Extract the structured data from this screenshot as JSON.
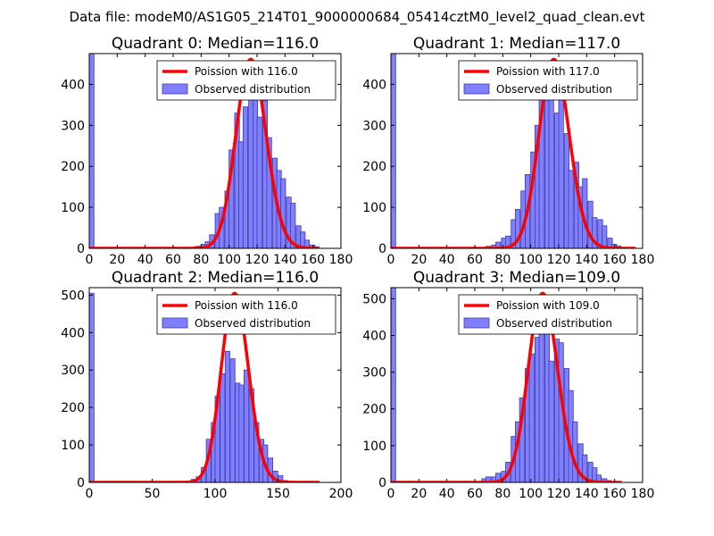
{
  "figure": {
    "suptitle": "Data file: modeM0/AS1G05_214T01_9000000684_05414cztM0_level2_quad_clean.evt"
  },
  "colors": {
    "bar_fill": "#8080ff",
    "bar_edge": "#3a3aa8",
    "curve": "#ff0000",
    "axes": "#000000"
  },
  "chart_data": [
    {
      "type": "bar",
      "title": "Quadrant 0: Median=116.0",
      "xlim": [
        0,
        180
      ],
      "ylim": [
        0,
        475
      ],
      "xticks": [
        0,
        20,
        40,
        60,
        80,
        100,
        120,
        140,
        160,
        180
      ],
      "yticks": [
        0,
        100,
        200,
        300,
        400
      ],
      "bin_width": 3.4,
      "bins": [
        [
          0,
          475
        ],
        [
          73,
          3
        ],
        [
          76,
          5
        ],
        [
          80,
          10
        ],
        [
          83,
          16
        ],
        [
          86,
          33
        ],
        [
          90,
          85
        ],
        [
          93,
          100
        ],
        [
          97,
          140
        ],
        [
          100,
          240
        ],
        [
          104,
          330
        ],
        [
          107,
          260
        ],
        [
          110,
          345
        ],
        [
          114,
          405
        ],
        [
          117,
          400
        ],
        [
          120,
          320
        ],
        [
          124,
          360
        ],
        [
          127,
          270
        ],
        [
          131,
          220
        ],
        [
          134,
          190
        ],
        [
          137,
          170
        ],
        [
          141,
          125
        ],
        [
          144,
          110
        ],
        [
          148,
          55
        ],
        [
          151,
          40
        ],
        [
          154,
          20
        ],
        [
          158,
          8
        ],
        [
          161,
          4
        ]
      ],
      "curve_mu": 116.0,
      "curve_range": [
        0,
        163
      ],
      "legend": [
        "Poission with 116.0",
        "Observed distribution"
      ]
    },
    {
      "type": "bar",
      "title": "Quadrant 1: Median=117.0",
      "xlim": [
        0,
        180
      ],
      "ylim": [
        0,
        475
      ],
      "xticks": [
        0,
        20,
        40,
        60,
        80,
        100,
        120,
        140,
        160,
        180
      ],
      "yticks": [
        0,
        100,
        200,
        300,
        400
      ],
      "bin_width": 3.4,
      "bins": [
        [
          0,
          475
        ],
        [
          68,
          5
        ],
        [
          72,
          8
        ],
        [
          75,
          15
        ],
        [
          79,
          25
        ],
        [
          82,
          30
        ],
        [
          86,
          70
        ],
        [
          89,
          95
        ],
        [
          93,
          140
        ],
        [
          96,
          180
        ],
        [
          100,
          235
        ],
        [
          103,
          300
        ],
        [
          106,
          365
        ],
        [
          110,
          390
        ],
        [
          113,
          430
        ],
        [
          117,
          330
        ],
        [
          120,
          440
        ],
        [
          124,
          280
        ],
        [
          127,
          190
        ],
        [
          131,
          210
        ],
        [
          134,
          150
        ],
        [
          137,
          170
        ],
        [
          141,
          115
        ],
        [
          144,
          75
        ],
        [
          148,
          70
        ],
        [
          151,
          55
        ],
        [
          155,
          25
        ],
        [
          158,
          10
        ],
        [
          161,
          6
        ]
      ],
      "curve_mu": 117.0,
      "curve_range": [
        0,
        175
      ],
      "legend": [
        "Poission with 117.0",
        "Observed distribution"
      ]
    },
    {
      "type": "bar",
      "title": "Quadrant 2: Median=116.0",
      "xlim": [
        0,
        200
      ],
      "ylim": [
        0,
        520
      ],
      "xticks": [
        0,
        50,
        100,
        150,
        200
      ],
      "yticks": [
        0,
        100,
        200,
        300,
        400,
        500
      ],
      "bin_width": 3.8,
      "bins": [
        [
          0,
          505
        ],
        [
          77,
          2
        ],
        [
          81,
          8
        ],
        [
          85,
          15
        ],
        [
          89,
          40
        ],
        [
          93,
          115
        ],
        [
          97,
          160
        ],
        [
          100,
          230
        ],
        [
          104,
          290
        ],
        [
          108,
          350
        ],
        [
          112,
          330
        ],
        [
          116,
          265
        ],
        [
          119,
          260
        ],
        [
          123,
          300
        ],
        [
          127,
          250
        ],
        [
          131,
          160
        ],
        [
          135,
          115
        ],
        [
          138,
          100
        ],
        [
          142,
          65
        ],
        [
          146,
          30
        ],
        [
          150,
          18
        ],
        [
          154,
          5
        ]
      ],
      "curve_mu": 116.0,
      "curve_range": [
        0,
        183
      ],
      "legend": [
        "Poission with 116.0",
        "Observed distribution"
      ]
    },
    {
      "type": "bar",
      "title": "Quadrant 3: Median=109.0",
      "xlim": [
        0,
        180
      ],
      "ylim": [
        0,
        530
      ],
      "xticks": [
        0,
        20,
        40,
        60,
        80,
        100,
        120,
        140,
        160,
        180
      ],
      "yticks": [
        0,
        100,
        200,
        300,
        400,
        500
      ],
      "bin_width": 3.4,
      "bins": [
        [
          0,
          530
        ],
        [
          65,
          10
        ],
        [
          68,
          15
        ],
        [
          72,
          15
        ],
        [
          75,
          25
        ],
        [
          79,
          30
        ],
        [
          82,
          55
        ],
        [
          86,
          125
        ],
        [
          89,
          165
        ],
        [
          92,
          230
        ],
        [
          96,
          310
        ],
        [
          99,
          350
        ],
        [
          103,
          395
        ],
        [
          106,
          440
        ],
        [
          110,
          420
        ],
        [
          113,
          330
        ],
        [
          117,
          390
        ],
        [
          120,
          380
        ],
        [
          124,
          310
        ],
        [
          127,
          250
        ],
        [
          130,
          165
        ],
        [
          134,
          105
        ],
        [
          137,
          75
        ],
        [
          141,
          55
        ],
        [
          144,
          40
        ],
        [
          147,
          20
        ],
        [
          151,
          10
        ],
        [
          154,
          5
        ]
      ],
      "curve_mu": 109.0,
      "curve_range": [
        0,
        165
      ],
      "legend": [
        "Poission with 109.0",
        "Observed distribution"
      ]
    }
  ]
}
